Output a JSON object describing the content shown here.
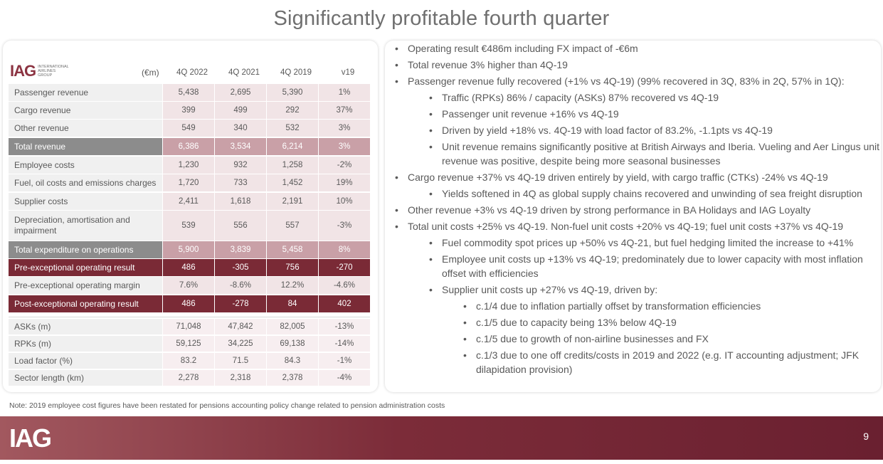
{
  "title": "Significantly profitable fourth quarter",
  "logo": {
    "mark": "IAG",
    "sub1": "INTERNATIONAL",
    "sub2": "AIRLINES",
    "sub3": "GROUP"
  },
  "table": {
    "unit": "(€m)",
    "columns": [
      "4Q 2022",
      "4Q 2021",
      "4Q 2019",
      "v19"
    ],
    "rows": [
      {
        "label": "Passenger revenue",
        "values": [
          "5,438",
          "2,695",
          "5,390",
          "1%"
        ]
      },
      {
        "label": "Cargo revenue",
        "values": [
          "399",
          "499",
          "292",
          "37%"
        ]
      },
      {
        "label": "Other revenue",
        "values": [
          "549",
          "340",
          "532",
          "3%"
        ]
      },
      {
        "label": "Total revenue",
        "values": [
          "6,386",
          "3,534",
          "6,214",
          "3%"
        ]
      },
      {
        "label": "Employee costs",
        "values": [
          "1,230",
          "932",
          "1,258",
          "-2%"
        ]
      },
      {
        "label": "Fuel, oil costs and emissions charges",
        "values": [
          "1,720",
          "733",
          "1,452",
          "19%"
        ]
      },
      {
        "label": "Supplier costs",
        "values": [
          "2,411",
          "1,618",
          "2,191",
          "10%"
        ]
      },
      {
        "label": "Depreciation, amortisation and impairment",
        "values": [
          "539",
          "556",
          "557",
          "-3%"
        ]
      },
      {
        "label": "Total expenditure on operations",
        "values": [
          "5,900",
          "3,839",
          "5,458",
          "8%"
        ]
      },
      {
        "label": "Pre-exceptional operating result",
        "values": [
          "486",
          "-305",
          "756",
          "-270"
        ]
      },
      {
        "label": "Pre-exceptional operating margin",
        "values": [
          "7.6%",
          "-8.6%",
          "12.2%",
          "-4.6%"
        ]
      },
      {
        "label": "Post-exceptional operating result",
        "values": [
          "486",
          "-278",
          "84",
          "402"
        ]
      }
    ],
    "ops_rows": [
      {
        "label": "ASKs (m)",
        "values": [
          "71,048",
          "47,842",
          "82,005",
          "-13%"
        ]
      },
      {
        "label": "RPKs (m)",
        "values": [
          "59,125",
          "34,225",
          "69,138",
          "-14%"
        ]
      },
      {
        "label": "Load factor (%)",
        "values": [
          "83.2",
          "71.5",
          "84.3",
          "-1%"
        ]
      },
      {
        "label": "Sector length (km)",
        "values": [
          "2,278",
          "2,318",
          "2,378",
          "-4%"
        ]
      }
    ]
  },
  "bullets": [
    {
      "level": 1,
      "text": "Operating result €486m including FX impact of -€6m"
    },
    {
      "level": 1,
      "text": "Total revenue 3% higher than 4Q-19"
    },
    {
      "level": 1,
      "text": "Passenger revenue fully recovered (+1% vs 4Q-19) (99% recovered in 3Q, 83% in 2Q, 57% in 1Q):"
    },
    {
      "level": 2,
      "text": "Traffic (RPKs) 86% / capacity (ASKs) 87% recovered vs 4Q-19"
    },
    {
      "level": 2,
      "text": "Passenger unit revenue +16% vs 4Q-19"
    },
    {
      "level": 2,
      "text": "Driven by yield +18% vs. 4Q-19 with load factor of 83.2%, -1.1pts vs 4Q-19"
    },
    {
      "level": 2,
      "text": "Unit revenue remains significantly positive at British Airways and Iberia. Vueling and Aer Lingus unit revenue was positive, despite being more seasonal businesses"
    },
    {
      "level": 1,
      "text": "Cargo revenue +37% vs 4Q-19 driven entirely by yield, with cargo traffic (CTKs) -24% vs 4Q-19"
    },
    {
      "level": 2,
      "text": "Yields softened in 4Q as global supply chains recovered and unwinding of sea freight disruption"
    },
    {
      "level": 1,
      "text": "Other revenue +3% vs 4Q-19 driven by strong performance in BA Holidays and IAG Loyalty"
    },
    {
      "level": 1,
      "text": "Total unit costs +25% vs 4Q-19. Non-fuel unit costs +20% vs 4Q-19; fuel unit costs +37% vs 4Q-19"
    },
    {
      "level": 2,
      "text": "Fuel commodity spot prices up +50% vs 4Q-21, but fuel hedging limited the increase to +41%"
    },
    {
      "level": 2,
      "text": "Employee unit costs up +13% vs 4Q-19; predominately due to lower capacity with most inflation offset with efficiencies"
    },
    {
      "level": 2,
      "text": "Supplier unit costs up +27% vs 4Q-19, driven by:"
    },
    {
      "level": 3,
      "text": "c.1/4 due to inflation partially offset by transformation efficiencies"
    },
    {
      "level": 3,
      "text": "c.1/5 due to capacity being 13% below 4Q-19"
    },
    {
      "level": 3,
      "text": "c.1/5 due to growth of non-airline businesses and FX"
    },
    {
      "level": 3,
      "text": "c.1/3 due to one off credits/costs in 2019 and 2022 (e.g. IT accounting adjustment; JFK dilapidation provision)"
    }
  ],
  "note": "Note: 2019 employee cost figures have been restated for pensions accounting policy change related to pension administration costs",
  "footer": {
    "logo": "IAG",
    "page_number": "9"
  }
}
